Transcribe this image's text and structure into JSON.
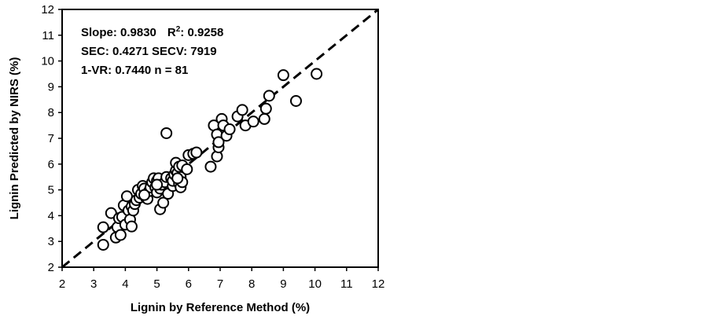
{
  "chart_data": {
    "type": "scatter",
    "xlabel": "Lignin by Reference Method  (%)",
    "ylabel": "Lignin Predicted by NIRS  (%)",
    "xlim": [
      2,
      12
    ],
    "ylim": [
      2,
      12
    ],
    "x_ticks": [
      "2",
      "3",
      "4",
      "5",
      "6",
      "7",
      "8",
      "9",
      "10",
      "11",
      "12"
    ],
    "y_ticks": [
      "2",
      "3",
      "4",
      "5",
      "6",
      "7",
      "8",
      "9",
      "10",
      "11",
      "12"
    ],
    "grid": false,
    "marker": "open-circle",
    "reference_line": {
      "style": "dashed",
      "from": [
        2,
        2
      ],
      "to": [
        12,
        12
      ]
    },
    "annotations": [
      {
        "line1_a": "Slope: 0.9830",
        "line1_b": "R",
        "line1_sup": "2",
        "line1_c": ": 0.9258"
      },
      "SEC: 0.4271  SECV: 7919",
      "1-VR: 0.7440  n = 81"
    ],
    "points": [
      [
        3.3,
        2.87
      ],
      [
        3.3,
        3.55
      ],
      [
        3.55,
        4.1
      ],
      [
        3.7,
        3.15
      ],
      [
        3.75,
        3.55
      ],
      [
        3.8,
        3.9
      ],
      [
        3.85,
        3.25
      ],
      [
        3.9,
        3.95
      ],
      [
        3.95,
        4.4
      ],
      [
        4.0,
        3.65
      ],
      [
        4.05,
        4.75
      ],
      [
        4.1,
        4.2
      ],
      [
        4.15,
        3.85
      ],
      [
        4.2,
        3.58
      ],
      [
        4.2,
        4.35
      ],
      [
        4.25,
        4.2
      ],
      [
        4.3,
        4.45
      ],
      [
        4.35,
        4.6
      ],
      [
        4.4,
        5.0
      ],
      [
        4.45,
        4.7
      ],
      [
        4.5,
        4.85
      ],
      [
        4.55,
        5.15
      ],
      [
        4.6,
        5.05
      ],
      [
        4.65,
        4.7
      ],
      [
        4.7,
        4.65
      ],
      [
        4.75,
        4.95
      ],
      [
        4.8,
        5.1
      ],
      [
        4.85,
        5.3
      ],
      [
        4.9,
        5.45
      ],
      [
        4.95,
        5.1
      ],
      [
        5.0,
        4.9
      ],
      [
        5.0,
        5.35
      ],
      [
        5.05,
        5.45
      ],
      [
        5.1,
        5.05
      ],
      [
        5.1,
        4.25
      ],
      [
        5.15,
        5.2
      ],
      [
        5.2,
        4.5
      ],
      [
        5.25,
        5.3
      ],
      [
        5.3,
        5.5
      ],
      [
        5.35,
        4.85
      ],
      [
        5.3,
        7.2
      ],
      [
        5.45,
        5.45
      ],
      [
        5.5,
        5.15
      ],
      [
        5.5,
        5.35
      ],
      [
        5.55,
        5.6
      ],
      [
        5.6,
        5.75
      ],
      [
        5.6,
        6.05
      ],
      [
        5.65,
        5.65
      ],
      [
        5.7,
        5.25
      ],
      [
        5.7,
        5.9
      ],
      [
        5.75,
        5.1
      ],
      [
        5.75,
        5.5
      ],
      [
        5.8,
        5.95
      ],
      [
        5.8,
        5.3
      ],
      [
        5.95,
        5.8
      ],
      [
        6.0,
        6.35
      ],
      [
        6.15,
        6.4
      ],
      [
        6.25,
        6.45
      ],
      [
        6.7,
        5.9
      ],
      [
        6.8,
        7.5
      ],
      [
        6.9,
        6.3
      ],
      [
        6.9,
        7.15
      ],
      [
        6.95,
        6.65
      ],
      [
        6.95,
        6.85
      ],
      [
        7.05,
        7.75
      ],
      [
        7.1,
        7.5
      ],
      [
        7.2,
        7.1
      ],
      [
        7.3,
        7.35
      ],
      [
        7.55,
        7.85
      ],
      [
        7.7,
        8.1
      ],
      [
        7.8,
        7.5
      ],
      [
        8.05,
        7.65
      ],
      [
        8.4,
        7.75
      ],
      [
        8.45,
        8.15
      ],
      [
        8.55,
        8.65
      ],
      [
        9.0,
        9.45
      ],
      [
        9.4,
        8.45
      ],
      [
        10.05,
        9.5
      ],
      [
        5.65,
        5.45
      ],
      [
        5.0,
        5.2
      ],
      [
        4.6,
        4.8
      ]
    ]
  }
}
